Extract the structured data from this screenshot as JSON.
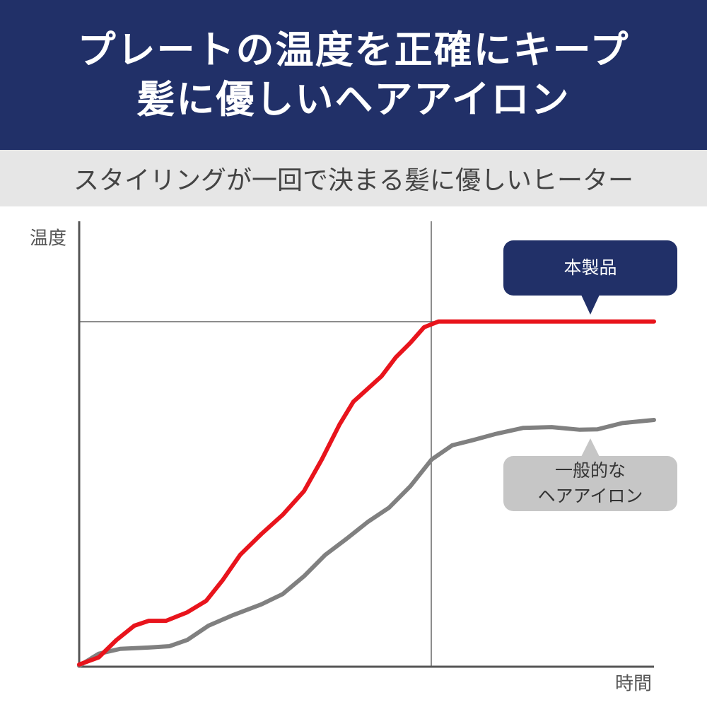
{
  "header": {
    "title": "プレートの温度を正確にキープ\n髪に優しいヘアアイロン",
    "subtitle": "スタイリングが一回で決まる髪に優しいヒーター"
  },
  "chart_data": {
    "type": "line",
    "y_label": "温度",
    "x_label": "時間",
    "xlim": [
      0,
      100
    ],
    "ylim": [
      0,
      100
    ],
    "series": [
      {
        "name": "本製品",
        "color": "#e8141c",
        "x": [
          0,
          3.4,
          6.5,
          9.6,
          12.1,
          15.1,
          18.8,
          22.1,
          25.0,
          28.0,
          31.7,
          35.4,
          39.1,
          42.2,
          45.3,
          47.7,
          50.2,
          52.6,
          55.1,
          57.6,
          60.0,
          62.5,
          72.3,
          84.6,
          100
        ],
        "values": [
          0.5,
          2.1,
          6.0,
          9.2,
          10.3,
          10.3,
          12.2,
          14.8,
          19.5,
          25.1,
          29.8,
          34.1,
          39.4,
          46.5,
          54.4,
          59.5,
          62.4,
          65.2,
          69.5,
          72.7,
          76.2,
          77.5,
          77.5,
          77.5,
          77.5
        ]
      },
      {
        "name": "一般的な\nヘアアイロン",
        "color": "#808080",
        "x": [
          0,
          3.4,
          7.1,
          12.1,
          15.7,
          18.8,
          22.5,
          26.8,
          31.7,
          35.4,
          39.1,
          42.8,
          46.5,
          50.2,
          53.9,
          57.6,
          61.3,
          64.9,
          68.6,
          72.3,
          77.2,
          82.2,
          87.1,
          90.2,
          94.5,
          100
        ],
        "values": [
          0.2,
          2.9,
          4.0,
          4.3,
          4.6,
          6.0,
          9.2,
          11.6,
          14.0,
          16.3,
          20.3,
          25.1,
          28.7,
          32.5,
          35.7,
          40.5,
          46.5,
          49.7,
          50.9,
          52.2,
          53.6,
          53.8,
          53.2,
          53.3,
          54.7,
          55.4
        ]
      }
    ]
  }
}
